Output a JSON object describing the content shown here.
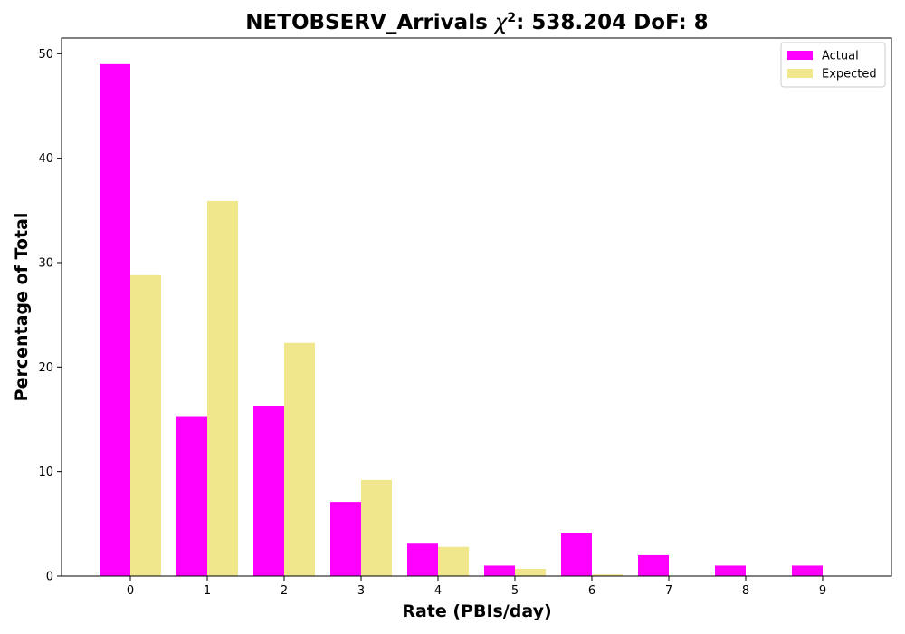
{
  "chart_data": {
    "type": "bar",
    "title": "NETOBSERV_Arrivals χ²: 538.204 DoF: 8",
    "title_main": "NETOBSERV_Arrivals ",
    "title_chi": "χ",
    "title_chi_exp": "2",
    "title_rest": ": 538.204 DoF: 8",
    "xlabel": "Rate (PBIs/day)",
    "ylabel": "Percentage of Total",
    "categories": [
      "0",
      "1",
      "2",
      "3",
      "4",
      "5",
      "6",
      "7",
      "8",
      "9"
    ],
    "ylim": [
      0,
      51.5
    ],
    "yticks": [
      0,
      10,
      20,
      30,
      40,
      50
    ],
    "grid": false,
    "legend_position": "top-right",
    "series": [
      {
        "name": "Actual",
        "color": "#ff00ff",
        "values": [
          49.0,
          15.3,
          16.3,
          7.1,
          3.1,
          1.0,
          4.1,
          2.0,
          1.0,
          1.0
        ]
      },
      {
        "name": "Expected",
        "color": "#f0e68c",
        "values": [
          28.8,
          35.9,
          22.3,
          9.2,
          2.8,
          0.7,
          0.15,
          0.03,
          0.0,
          0.0
        ]
      }
    ]
  }
}
